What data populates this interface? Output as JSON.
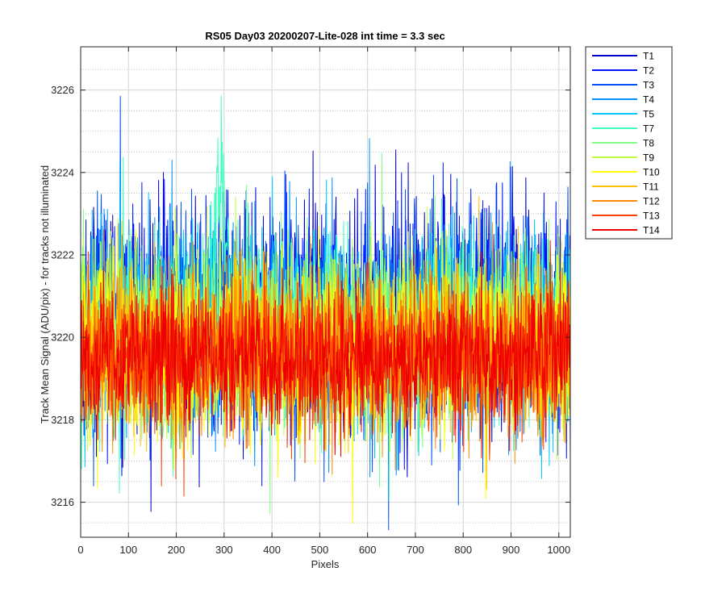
{
  "chart_data": {
    "type": "line",
    "title": "RS05 Day03 20200207-Lite-028 int time = 3.3 sec",
    "xlabel": "Pixels",
    "ylabel": "Track Mean Signal (ADU/pix) - for tracks not illuminated",
    "xlim": [
      0,
      1024
    ],
    "ylim": [
      3215.15,
      3227.05
    ],
    "x_ticks": [
      0,
      100,
      200,
      300,
      400,
      500,
      600,
      700,
      800,
      900,
      1000
    ],
    "x_tick_labels": [
      "0",
      "100",
      "200",
      "300",
      "400",
      "500",
      "600",
      "700",
      "800",
      "900",
      "1000"
    ],
    "y_ticks": [
      3216,
      3218,
      3220,
      3222,
      3224,
      3226
    ],
    "y_tick_labels": [
      "3216",
      "3218",
      "3220",
      "3222",
      "3224",
      "3226"
    ],
    "y_minor_ticks": [
      3215.5,
      3216.5,
      3217,
      3217.5,
      3218.5,
      3219,
      3219.5,
      3220.5,
      3221,
      3221.5,
      3222.5,
      3223,
      3223.5,
      3224.5,
      3225,
      3225.5,
      3226.5
    ],
    "grid": true,
    "minor_grid_y": true,
    "legend_position": "outside-top-right",
    "n_points": 1024,
    "x_start": 1,
    "series": [
      {
        "name": "T1",
        "color": "#0000cc",
        "mean": 3220.5,
        "std": 1.35
      },
      {
        "name": "T2",
        "color": "#0014ff",
        "mean": 3220.4,
        "std": 1.3
      },
      {
        "name": "T3",
        "color": "#0050ff",
        "mean": 3220.3,
        "std": 1.25
      },
      {
        "name": "T4",
        "color": "#0090ff",
        "mean": 3220.2,
        "std": 1.22
      },
      {
        "name": "T5",
        "color": "#00c8ff",
        "mean": 3220.2,
        "std": 1.2
      },
      {
        "name": "T7",
        "color": "#40ffc0",
        "mean": 3220.1,
        "std": 1.1,
        "peak": {
          "center": 290,
          "width": 12,
          "height": 5.2
        }
      },
      {
        "name": "T8",
        "color": "#80ff80",
        "mean": 3220.0,
        "std": 1.1
      },
      {
        "name": "T9",
        "color": "#c0ff40",
        "mean": 3219.9,
        "std": 1.1
      },
      {
        "name": "T10",
        "color": "#ffff00",
        "mean": 3219.8,
        "std": 1.05
      },
      {
        "name": "T11",
        "color": "#ffc000",
        "mean": 3219.7,
        "std": 1.0
      },
      {
        "name": "T12",
        "color": "#ff8c00",
        "mean": 3219.6,
        "std": 0.95
      },
      {
        "name": "T13",
        "color": "#ff4000",
        "mean": 3219.6,
        "std": 0.9
      },
      {
        "name": "T14",
        "color": "#ee0000",
        "mean": 3219.5,
        "std": 0.85
      }
    ]
  }
}
